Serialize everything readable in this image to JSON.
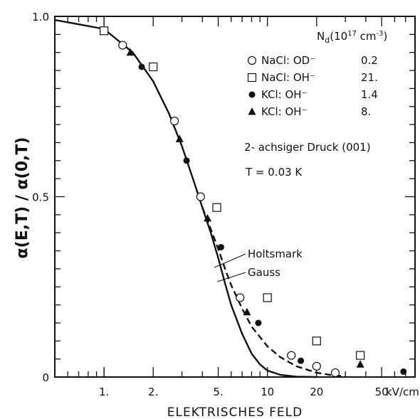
{
  "chart_data": {
    "type": "scatter",
    "xscale": "log",
    "xlim": [
      0.5,
      80
    ],
    "ylim": [
      0,
      1.0
    ],
    "xlabel": "ELEKTRISCHES FELD",
    "ylabel": "α(E,T) / α(0,T)",
    "x_unit": "kV/cm",
    "x_ticks": [
      {
        "value": 1,
        "label": "1."
      },
      {
        "value": 2,
        "label": "2."
      },
      {
        "value": 5,
        "label": "5."
      },
      {
        "value": 10,
        "label": "10"
      },
      {
        "value": 20,
        "label": "20"
      },
      {
        "value": 50,
        "label": "50"
      }
    ],
    "y_ticks": [
      {
        "value": 0,
        "label": "0"
      },
      {
        "value": 0.5,
        "label": "0.5"
      },
      {
        "value": 1.0,
        "label": "1.0"
      }
    ],
    "legend_header": "N",
    "legend_header_sub": "d",
    "legend_header_unit": "(10",
    "legend_header_exp": "17",
    "legend_header_unit2": " cm",
    "legend_header_exp2": "-3",
    "legend_header_close": ")",
    "legend_position": "top-right",
    "series": [
      {
        "name": "NaCl: OD⁻",
        "nd": "0.2",
        "marker": "open-circle",
        "points": [
          [
            1.3,
            0.92
          ],
          [
            2.7,
            0.71
          ],
          [
            3.9,
            0.5
          ],
          [
            6.8,
            0.22
          ],
          [
            14,
            0.06
          ],
          [
            20,
            0.03
          ],
          [
            26,
            0.012
          ]
        ]
      },
      {
        "name": "NaCl: OH⁻",
        "nd": "21.",
        "marker": "open-square",
        "points": [
          [
            1.0,
            0.96
          ],
          [
            2.0,
            0.86
          ],
          [
            4.9,
            0.47
          ],
          [
            10,
            0.22
          ],
          [
            20,
            0.1
          ],
          [
            37,
            0.06
          ]
        ]
      },
      {
        "name": "KCl: OH⁻",
        "nd": "1.4",
        "marker": "filled-circle",
        "points": [
          [
            1.7,
            0.86
          ],
          [
            3.2,
            0.6
          ],
          [
            5.2,
            0.36
          ],
          [
            8.8,
            0.15
          ],
          [
            16,
            0.045
          ],
          [
            68,
            0.015
          ]
        ]
      },
      {
        "name": "KCl: OH⁻",
        "nd": "8.",
        "marker": "filled-triangle",
        "points": [
          [
            1.45,
            0.9
          ],
          [
            2.9,
            0.66
          ],
          [
            4.3,
            0.44
          ],
          [
            7.5,
            0.18
          ],
          [
            37,
            0.035
          ]
        ]
      }
    ],
    "curves": [
      {
        "name": "Holtsmark",
        "style": "solid",
        "points": [
          [
            0.5,
            0.99
          ],
          [
            1.0,
            0.965
          ],
          [
            1.5,
            0.9
          ],
          [
            2.0,
            0.82
          ],
          [
            2.5,
            0.73
          ],
          [
            3.0,
            0.64
          ],
          [
            3.5,
            0.55
          ],
          [
            4.0,
            0.47
          ],
          [
            4.5,
            0.4
          ],
          [
            5.0,
            0.33
          ],
          [
            5.5,
            0.26
          ],
          [
            6.0,
            0.2
          ],
          [
            7.0,
            0.12
          ],
          [
            8.0,
            0.065
          ],
          [
            9.0,
            0.035
          ],
          [
            10,
            0.018
          ],
          [
            12,
            0.006
          ],
          [
            15,
            0.001
          ],
          [
            20,
            0.0
          ]
        ]
      },
      {
        "name": "Gauss",
        "style": "dashed",
        "points": [
          [
            4.0,
            0.47
          ],
          [
            4.5,
            0.41
          ],
          [
            5.0,
            0.355
          ],
          [
            5.5,
            0.3
          ],
          [
            6.0,
            0.255
          ],
          [
            7.0,
            0.19
          ],
          [
            8.0,
            0.14
          ],
          [
            10,
            0.085
          ],
          [
            12,
            0.055
          ],
          [
            15,
            0.03
          ],
          [
            20,
            0.012
          ],
          [
            25,
            0.005
          ],
          [
            30,
            0.002
          ]
        ]
      }
    ],
    "annotations": [
      {
        "text": "2- achsiger Druck (001)"
      },
      {
        "text": "T = 0.03  K"
      },
      {
        "text": "Holtsmark"
      },
      {
        "text": "Gauss"
      }
    ]
  }
}
